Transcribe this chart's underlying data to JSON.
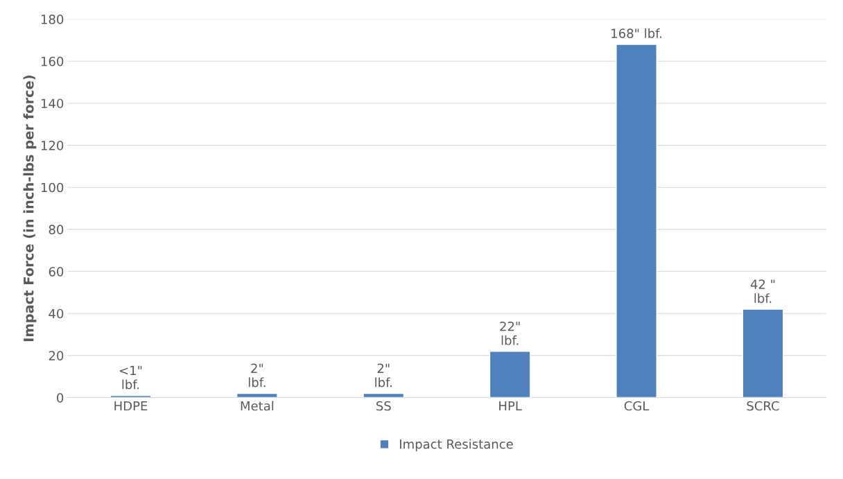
{
  "chart_data": {
    "type": "bar",
    "ylabel": "Impact Force (in inch-lbs per force)",
    "categories": [
      "HDPE",
      "Metal",
      "SS",
      "HPL",
      "CGL",
      "SCRC"
    ],
    "series": [
      {
        "name": "Impact Resistance",
        "color": "#4f81bd",
        "values": [
          1,
          2,
          2,
          22,
          168,
          42
        ],
        "value_labels": [
          "<1\"\nlbf.",
          "2\"\nlbf.",
          "2\"\nlbf.",
          "22\"\nlbf.",
          "168\" lbf.",
          "42 \"\nlbf."
        ]
      }
    ],
    "ylim": [
      0,
      180
    ],
    "yticks": [
      0,
      20,
      40,
      60,
      80,
      100,
      120,
      140,
      160,
      180
    ],
    "grid": "y",
    "legend": "bottom"
  }
}
